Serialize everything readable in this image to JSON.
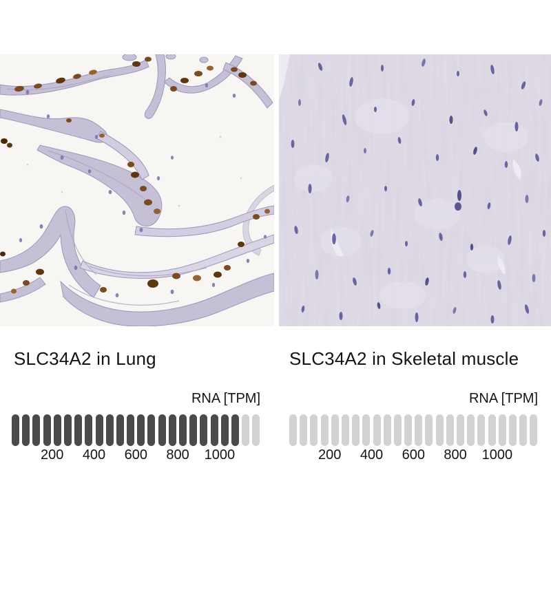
{
  "panels": [
    {
      "caption": "SLC34A2 in Lung",
      "rna_label": "RNA [TPM]",
      "bar": {
        "segments_total": 24,
        "segments_filled": 22,
        "tpm_per_segment": 50,
        "filled_color": "#4a4a4a",
        "empty_color": "#d2d2d2",
        "ticks": [
          "200",
          "400",
          "600",
          "800",
          "1000"
        ]
      }
    },
    {
      "caption": "SLC34A2 in Skeletal muscle",
      "rna_label": "RNA [TPM]",
      "bar": {
        "segments_total": 24,
        "segments_filled": 0,
        "tpm_per_segment": 50,
        "filled_color": "#4a4a4a",
        "empty_color": "#d2d2d2",
        "ticks": [
          "200",
          "400",
          "600",
          "800",
          "1000"
        ]
      }
    }
  ],
  "chart_data": [
    {
      "type": "bar",
      "title": "RNA [TPM]",
      "series_label": "SLC34A2 in Lung",
      "segments_total": 24,
      "segments_filled": 22,
      "tpm_per_segment": 50,
      "value_tpm_approx": 1100,
      "xlim": [
        0,
        1200
      ],
      "ticks": [
        200,
        400,
        600,
        800,
        1000
      ]
    },
    {
      "type": "bar",
      "title": "RNA [TPM]",
      "series_label": "SLC34A2 in Skeletal muscle",
      "segments_total": 24,
      "segments_filled": 0,
      "tpm_per_segment": 50,
      "value_tpm_approx": 0,
      "xlim": [
        0,
        1200
      ],
      "ticks": [
        200,
        400,
        600,
        800,
        1000
      ]
    }
  ]
}
